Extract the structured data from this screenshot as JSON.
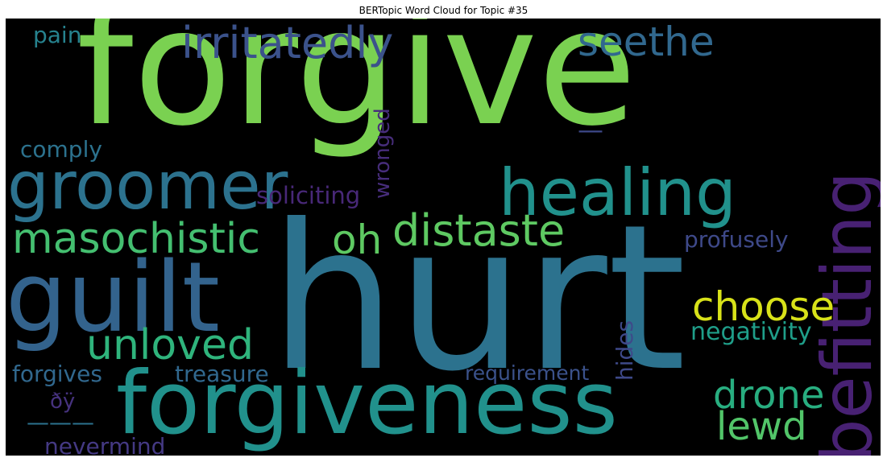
{
  "title": "BERTopic Word Cloud for Topic #35",
  "words": [
    {
      "text": "forgive",
      "color": "#7ad151"
    },
    {
      "text": "hurt",
      "color": "#2c728e"
    },
    {
      "text": "forgiveness",
      "color": "#21918c"
    },
    {
      "text": "guilt",
      "color": "#33638d"
    },
    {
      "text": "groomer",
      "color": "#2c728e"
    },
    {
      "text": "healing",
      "color": "#21918c"
    },
    {
      "text": "befitting",
      "color": "#482173"
    },
    {
      "text": "irritatedly",
      "color": "#3b528b"
    },
    {
      "text": "seethe",
      "color": "#31688e"
    },
    {
      "text": "masochistic",
      "color": "#44bf70"
    },
    {
      "text": "distaste",
      "color": "#5ec962"
    },
    {
      "text": "oh",
      "color": "#5ec962"
    },
    {
      "text": "choose",
      "color": "#d8e219"
    },
    {
      "text": "unloved",
      "color": "#2fb47c"
    },
    {
      "text": "drone",
      "color": "#28ae80"
    },
    {
      "text": "lewd",
      "color": "#52c569"
    },
    {
      "text": "negativity",
      "color": "#1f9e89"
    },
    {
      "text": "profusely",
      "color": "#3e4989"
    },
    {
      "text": "soliciting",
      "color": "#482878"
    },
    {
      "text": "wronged",
      "color": "#472d7b"
    },
    {
      "text": "comply",
      "color": "#2c728e"
    },
    {
      "text": "pain",
      "color": "#26828e"
    },
    {
      "text": "treasure",
      "color": "#31688e"
    },
    {
      "text": "forgives",
      "color": "#31688e"
    },
    {
      "text": "requirement",
      "color": "#3b528b"
    },
    {
      "text": "hides",
      "color": "#3e4989"
    },
    {
      "text": "nevermind",
      "color": "#443983"
    },
    {
      "text": "ðÿ",
      "color": "#46327e"
    },
    {
      "text": "—",
      "color": "#3e4989"
    },
    {
      "text": "———",
      "color": "#2c728e"
    }
  ]
}
